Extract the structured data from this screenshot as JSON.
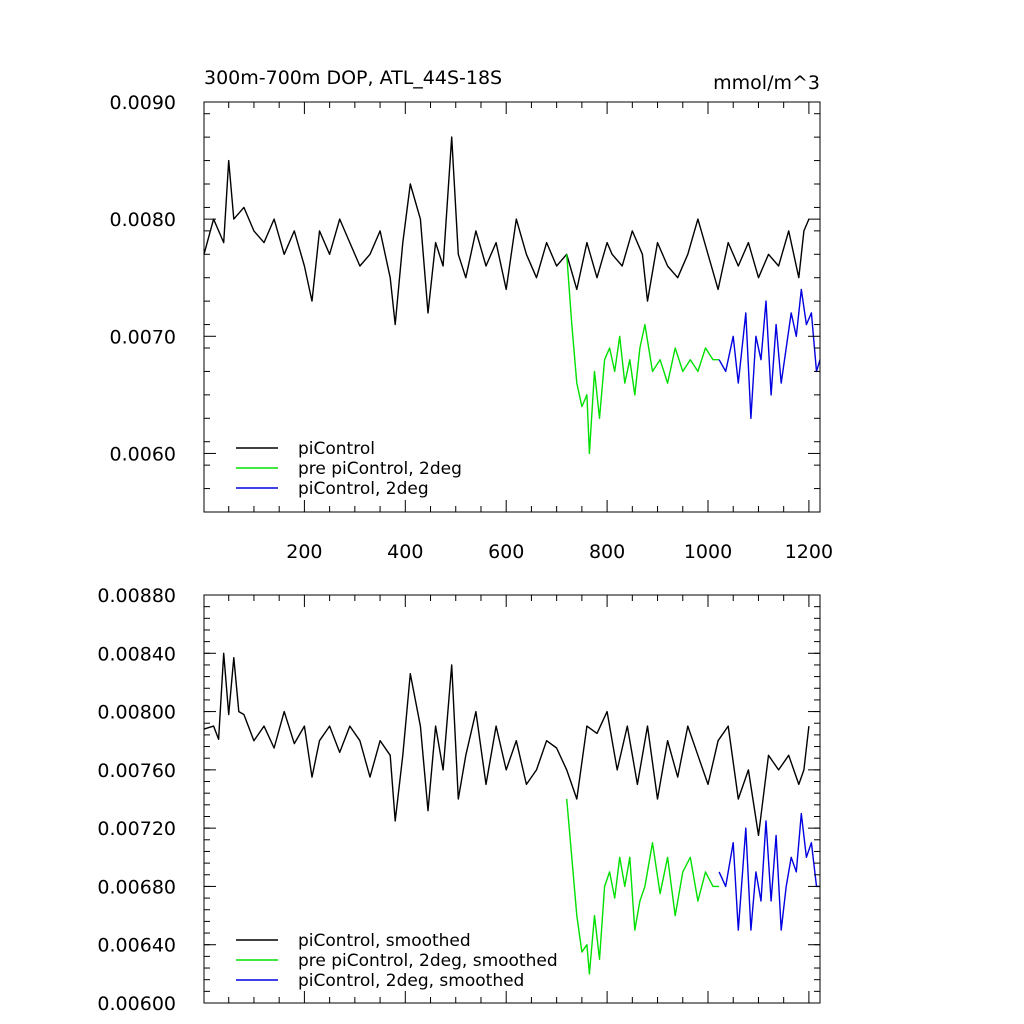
{
  "chart_data": [
    {
      "type": "line",
      "title": "300m-700m DOP, ATL_44S-18S",
      "units": "mmol/m^3",
      "xlim": [
        1,
        1222
      ],
      "ylim": [
        0.0055,
        0.009
      ],
      "xticks": [
        200,
        400,
        600,
        800,
        1000,
        1200
      ],
      "yticks": [
        "0.0060",
        "0.0070",
        "0.0080",
        "0.0090"
      ],
      "legend_position": "bottom-left",
      "legend": [
        "piControl",
        "pre piControl, 2deg",
        "piControl, 2deg"
      ],
      "series": [
        {
          "name": "piControl",
          "color": "#000000",
          "x": [
            1,
            20,
            40,
            50,
            60,
            80,
            100,
            120,
            140,
            160,
            180,
            200,
            215,
            230,
            250,
            270,
            290,
            310,
            330,
            350,
            370,
            380,
            395,
            410,
            430,
            445,
            460,
            475,
            492,
            505,
            520,
            540,
            560,
            580,
            600,
            620,
            640,
            660,
            680,
            700,
            720,
            740,
            760,
            780,
            800,
            810,
            830,
            850,
            870,
            880,
            900,
            920,
            940,
            960,
            980,
            1000,
            1020,
            1040,
            1060,
            1080,
            1100,
            1120,
            1140,
            1160,
            1180,
            1190,
            1200
          ],
          "values": [
            0.0077,
            0.008,
            0.0078,
            0.0085,
            0.008,
            0.0081,
            0.0079,
            0.0078,
            0.008,
            0.0077,
            0.0079,
            0.0076,
            0.0073,
            0.0079,
            0.0077,
            0.008,
            0.0078,
            0.0076,
            0.0077,
            0.0079,
            0.0075,
            0.0071,
            0.0078,
            0.0083,
            0.008,
            0.0072,
            0.0078,
            0.0076,
            0.0087,
            0.0077,
            0.0075,
            0.0079,
            0.0076,
            0.0078,
            0.0074,
            0.008,
            0.0077,
            0.0075,
            0.0078,
            0.0076,
            0.0077,
            0.0074,
            0.0078,
            0.0075,
            0.0078,
            0.0077,
            0.0076,
            0.0079,
            0.0077,
            0.0073,
            0.0078,
            0.0076,
            0.0075,
            0.0077,
            0.008,
            0.0077,
            0.0074,
            0.0078,
            0.0076,
            0.0078,
            0.0075,
            0.0077,
            0.0076,
            0.0079,
            0.0075,
            0.0079,
            0.008
          ]
        },
        {
          "name": "pre piControl, 2deg",
          "color": "#00e000",
          "x": [
            720,
            730,
            740,
            750,
            760,
            765,
            775,
            785,
            795,
            805,
            815,
            825,
            835,
            845,
            855,
            865,
            875,
            890,
            905,
            920,
            935,
            950,
            965,
            980,
            995,
            1010,
            1022
          ],
          "values": [
            0.0077,
            0.0071,
            0.0066,
            0.0064,
            0.0065,
            0.006,
            0.0067,
            0.0063,
            0.0068,
            0.0069,
            0.0067,
            0.007,
            0.0066,
            0.0068,
            0.0065,
            0.0069,
            0.0071,
            0.0067,
            0.0068,
            0.0066,
            0.0069,
            0.0067,
            0.0068,
            0.0067,
            0.0069,
            0.0068,
            0.0068
          ]
        },
        {
          "name": "piControl, 2deg",
          "color": "#0000e0",
          "x": [
            1022,
            1035,
            1050,
            1060,
            1075,
            1085,
            1095,
            1105,
            1115,
            1125,
            1135,
            1145,
            1155,
            1165,
            1175,
            1185,
            1195,
            1205,
            1215,
            1222
          ],
          "values": [
            0.0068,
            0.0067,
            0.007,
            0.0066,
            0.0072,
            0.0063,
            0.007,
            0.0068,
            0.0073,
            0.0065,
            0.0071,
            0.0066,
            0.0069,
            0.0072,
            0.007,
            0.0074,
            0.0071,
            0.0072,
            0.0067,
            0.0068
          ]
        }
      ]
    },
    {
      "type": "line",
      "title": "",
      "xlim": [
        1,
        1222
      ],
      "ylim": [
        0.006,
        0.0088
      ],
      "xticks": [
        200,
        400,
        600,
        800,
        1000,
        1200
      ],
      "yticks": [
        "0.00600",
        "0.00640",
        "0.00680",
        "0.00720",
        "0.00760",
        "0.00800",
        "0.00840",
        "0.00880"
      ],
      "legend_position": "bottom-left",
      "legend": [
        "piControl, smoothed",
        "pre piControl, 2deg, smoothed",
        "piControl, 2deg, smoothed"
      ],
      "series": [
        {
          "name": "piControl, smoothed",
          "color": "#000000",
          "x": [
            1,
            20,
            30,
            40,
            50,
            60,
            70,
            80,
            100,
            120,
            140,
            160,
            180,
            200,
            215,
            230,
            250,
            270,
            290,
            310,
            330,
            350,
            370,
            380,
            395,
            410,
            430,
            445,
            460,
            475,
            492,
            505,
            520,
            540,
            560,
            580,
            600,
            620,
            640,
            660,
            680,
            700,
            720,
            740,
            760,
            780,
            800,
            820,
            840,
            860,
            880,
            900,
            920,
            940,
            960,
            980,
            1000,
            1020,
            1040,
            1060,
            1080,
            1100,
            1120,
            1140,
            1160,
            1180,
            1190,
            1200
          ],
          "values": [
            0.00788,
            0.0079,
            0.00781,
            0.0084,
            0.00798,
            0.00837,
            0.008,
            0.00798,
            0.0078,
            0.0079,
            0.00775,
            0.008,
            0.00778,
            0.0079,
            0.00755,
            0.0078,
            0.0079,
            0.00772,
            0.0079,
            0.0078,
            0.00755,
            0.0078,
            0.0077,
            0.00725,
            0.0077,
            0.00826,
            0.0079,
            0.00732,
            0.0079,
            0.0076,
            0.00832,
            0.0074,
            0.0077,
            0.008,
            0.0075,
            0.0079,
            0.0076,
            0.0078,
            0.0075,
            0.0076,
            0.0078,
            0.00775,
            0.0076,
            0.0074,
            0.0079,
            0.00785,
            0.008,
            0.0076,
            0.0079,
            0.0075,
            0.0079,
            0.0074,
            0.0078,
            0.00755,
            0.0079,
            0.0077,
            0.0075,
            0.0078,
            0.0079,
            0.0074,
            0.0076,
            0.00715,
            0.0077,
            0.0076,
            0.0077,
            0.0075,
            0.0076,
            0.0079
          ]
        },
        {
          "name": "pre piControl, 2deg, smoothed",
          "color": "#00e000",
          "x": [
            720,
            730,
            740,
            750,
            760,
            765,
            775,
            785,
            795,
            805,
            815,
            825,
            835,
            845,
            855,
            865,
            875,
            890,
            905,
            920,
            935,
            950,
            965,
            980,
            995,
            1010,
            1022
          ],
          "values": [
            0.0074,
            0.007,
            0.0066,
            0.00635,
            0.0064,
            0.0062,
            0.0066,
            0.0063,
            0.0068,
            0.0069,
            0.00672,
            0.007,
            0.0068,
            0.007,
            0.0065,
            0.0067,
            0.0068,
            0.0071,
            0.00675,
            0.007,
            0.0066,
            0.0069,
            0.007,
            0.0067,
            0.0069,
            0.0068,
            0.0068
          ]
        },
        {
          "name": "piControl, 2deg, smoothed",
          "color": "#0000e0",
          "x": [
            1022,
            1035,
            1050,
            1060,
            1075,
            1085,
            1095,
            1105,
            1115,
            1125,
            1135,
            1145,
            1155,
            1165,
            1175,
            1185,
            1195,
            1205,
            1215,
            1222
          ],
          "values": [
            0.0069,
            0.0068,
            0.0071,
            0.0065,
            0.0072,
            0.0065,
            0.0069,
            0.0067,
            0.00725,
            0.0067,
            0.00715,
            0.0065,
            0.0068,
            0.007,
            0.0069,
            0.0073,
            0.007,
            0.0071,
            0.0068,
            0.0068
          ]
        }
      ]
    }
  ]
}
